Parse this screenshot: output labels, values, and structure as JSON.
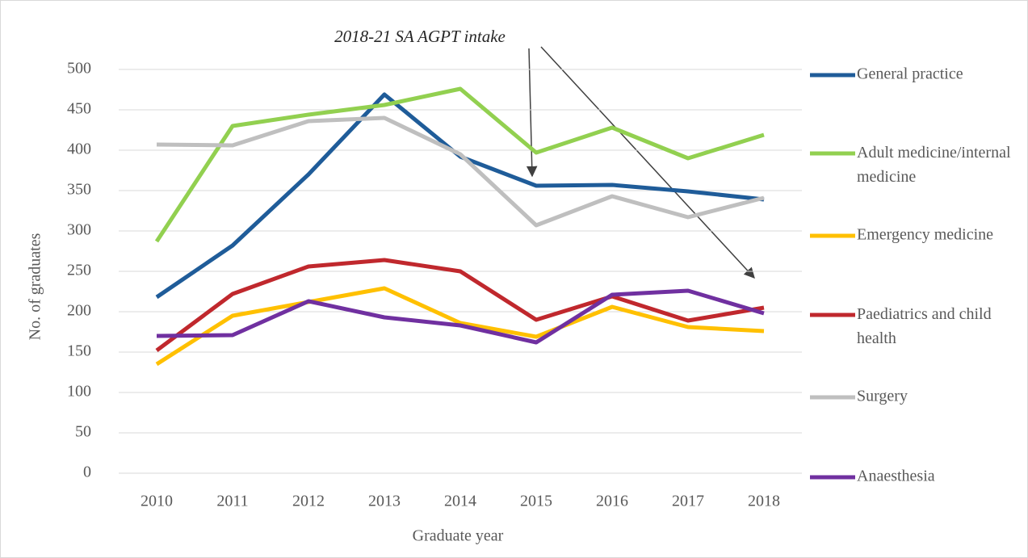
{
  "chart_data": {
    "type": "line",
    "annotation": "2018-21 SA AGPT intake",
    "xlabel": "Graduate year",
    "ylabel": "No. of graduates",
    "categories": [
      "2010",
      "2011",
      "2012",
      "2013",
      "2014",
      "2015",
      "2016",
      "2017",
      "2018"
    ],
    "ylim": [
      0,
      500
    ],
    "yticks": [
      0,
      50,
      100,
      150,
      200,
      250,
      300,
      350,
      400,
      450,
      500
    ],
    "grid": true,
    "legend": "right",
    "series": [
      {
        "name": "General practice",
        "color": "#1f5c99",
        "values": [
          218,
          282,
          370,
          469,
          392,
          356,
          357,
          349,
          339
        ]
      },
      {
        "name": "Adult medicine/internal medicine",
        "color": "#92d050",
        "values": [
          287,
          430,
          444,
          456,
          476,
          397,
          428,
          390,
          419
        ]
      },
      {
        "name": "Emergency medicine",
        "color": "#ffc000",
        "values": [
          135,
          195,
          212,
          229,
          186,
          169,
          206,
          181,
          176
        ]
      },
      {
        "name": "Paediatrics and child health",
        "color": "#c0282d",
        "values": [
          152,
          222,
          256,
          264,
          250,
          190,
          219,
          189,
          205
        ]
      },
      {
        "name": "Surgery",
        "color": "#bfbfbf",
        "values": [
          407,
          406,
          436,
          440,
          395,
          307,
          343,
          317,
          341
        ]
      },
      {
        "name": "Anaesthesia",
        "color": "#7030a0",
        "values": [
          170,
          171,
          213,
          193,
          183,
          162,
          221,
          226,
          198
        ]
      }
    ]
  }
}
